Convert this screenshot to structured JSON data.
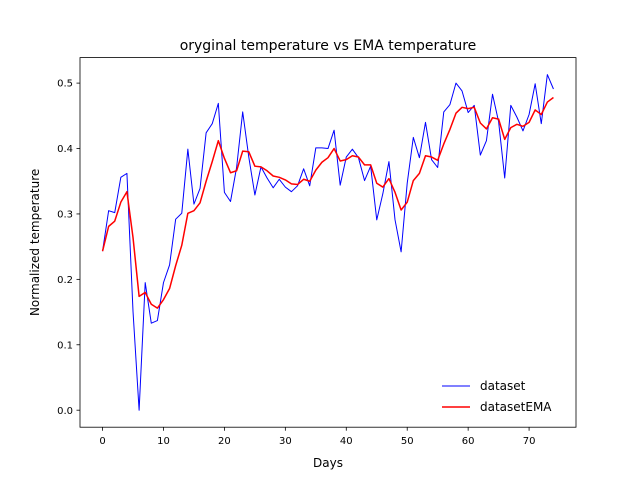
{
  "chart_data": {
    "type": "line",
    "title": "oryginal temperature vs EMA temperature",
    "xlabel": "Days",
    "ylabel": "Normalized temperature",
    "xlim": [
      -3.7,
      77.7
    ],
    "ylim": [
      -0.026,
      0.539
    ],
    "xticks": [
      0,
      10,
      20,
      30,
      40,
      50,
      60,
      70
    ],
    "xtick_labels": [
      "0",
      "10",
      "20",
      "30",
      "40",
      "50",
      "60",
      "70"
    ],
    "yticks": [
      0.0,
      0.1,
      0.2,
      0.3,
      0.4,
      0.5
    ],
    "ytick_labels": [
      "0.0",
      "0.1",
      "0.2",
      "0.3",
      "0.4",
      "0.5"
    ],
    "grid": false,
    "legend": {
      "placement": "lower-right"
    },
    "series": [
      {
        "name": "dataset",
        "color": "#0000ff",
        "stroke_width": 1.0,
        "x": [
          0,
          1,
          2,
          3,
          4,
          5,
          6,
          7,
          8,
          9,
          10,
          11,
          12,
          13,
          14,
          15,
          16,
          17,
          18,
          19,
          20,
          21,
          22,
          23,
          24,
          25,
          26,
          27,
          28,
          29,
          30,
          31,
          32,
          33,
          34,
          35,
          36,
          37,
          38,
          39,
          40,
          41,
          42,
          43,
          44,
          45,
          46,
          47,
          48,
          49,
          50,
          51,
          52,
          53,
          54,
          55,
          56,
          57,
          58,
          59,
          60,
          61,
          62,
          63,
          64,
          65,
          66,
          67,
          68,
          69,
          70,
          71,
          72,
          73,
          74
        ],
        "values": [
          0.243,
          0.305,
          0.302,
          0.356,
          0.362,
          0.151,
          0.0,
          0.195,
          0.133,
          0.137,
          0.195,
          0.222,
          0.292,
          0.301,
          0.399,
          0.315,
          0.339,
          0.424,
          0.438,
          0.469,
          0.333,
          0.319,
          0.371,
          0.456,
          0.387,
          0.329,
          0.372,
          0.355,
          0.34,
          0.353,
          0.341,
          0.334,
          0.343,
          0.369,
          0.343,
          0.401,
          0.401,
          0.4,
          0.428,
          0.344,
          0.387,
          0.399,
          0.386,
          0.351,
          0.373,
          0.291,
          0.331,
          0.38,
          0.291,
          0.242,
          0.347,
          0.417,
          0.386,
          0.44,
          0.383,
          0.371,
          0.456,
          0.467,
          0.5,
          0.488,
          0.455,
          0.466,
          0.39,
          0.412,
          0.483,
          0.441,
          0.355,
          0.466,
          0.448,
          0.427,
          0.452,
          0.499,
          0.438,
          0.513,
          0.491
        ]
      },
      {
        "name": "datasetEMA",
        "color": "#ff0000",
        "stroke_width": 1.5,
        "x": [
          0,
          1,
          2,
          3,
          4,
          5,
          6,
          7,
          8,
          9,
          10,
          11,
          12,
          13,
          14,
          15,
          16,
          17,
          18,
          19,
          20,
          21,
          22,
          23,
          24,
          25,
          26,
          27,
          28,
          29,
          30,
          31,
          32,
          33,
          34,
          35,
          36,
          37,
          38,
          39,
          40,
          41,
          42,
          43,
          44,
          45,
          46,
          47,
          48,
          49,
          50,
          51,
          52,
          53,
          54,
          55,
          56,
          57,
          58,
          59,
          60,
          61,
          62,
          63,
          64,
          65,
          66,
          67,
          68,
          69,
          70,
          71,
          72,
          73,
          74
        ],
        "values": [
          0.243,
          0.281,
          0.289,
          0.318,
          0.334,
          0.264,
          0.174,
          0.18,
          0.162,
          0.156,
          0.169,
          0.186,
          0.221,
          0.252,
          0.301,
          0.305,
          0.317,
          0.35,
          0.38,
          0.412,
          0.385,
          0.363,
          0.366,
          0.396,
          0.395,
          0.373,
          0.372,
          0.366,
          0.358,
          0.356,
          0.352,
          0.346,
          0.345,
          0.353,
          0.35,
          0.367,
          0.379,
          0.386,
          0.4,
          0.381,
          0.383,
          0.389,
          0.387,
          0.375,
          0.375,
          0.347,
          0.341,
          0.354,
          0.333,
          0.306,
          0.318,
          0.351,
          0.362,
          0.389,
          0.387,
          0.382,
          0.407,
          0.429,
          0.454,
          0.463,
          0.461,
          0.463,
          0.439,
          0.43,
          0.447,
          0.445,
          0.414,
          0.432,
          0.437,
          0.434,
          0.44,
          0.459,
          0.452,
          0.471,
          0.478
        ]
      }
    ]
  }
}
